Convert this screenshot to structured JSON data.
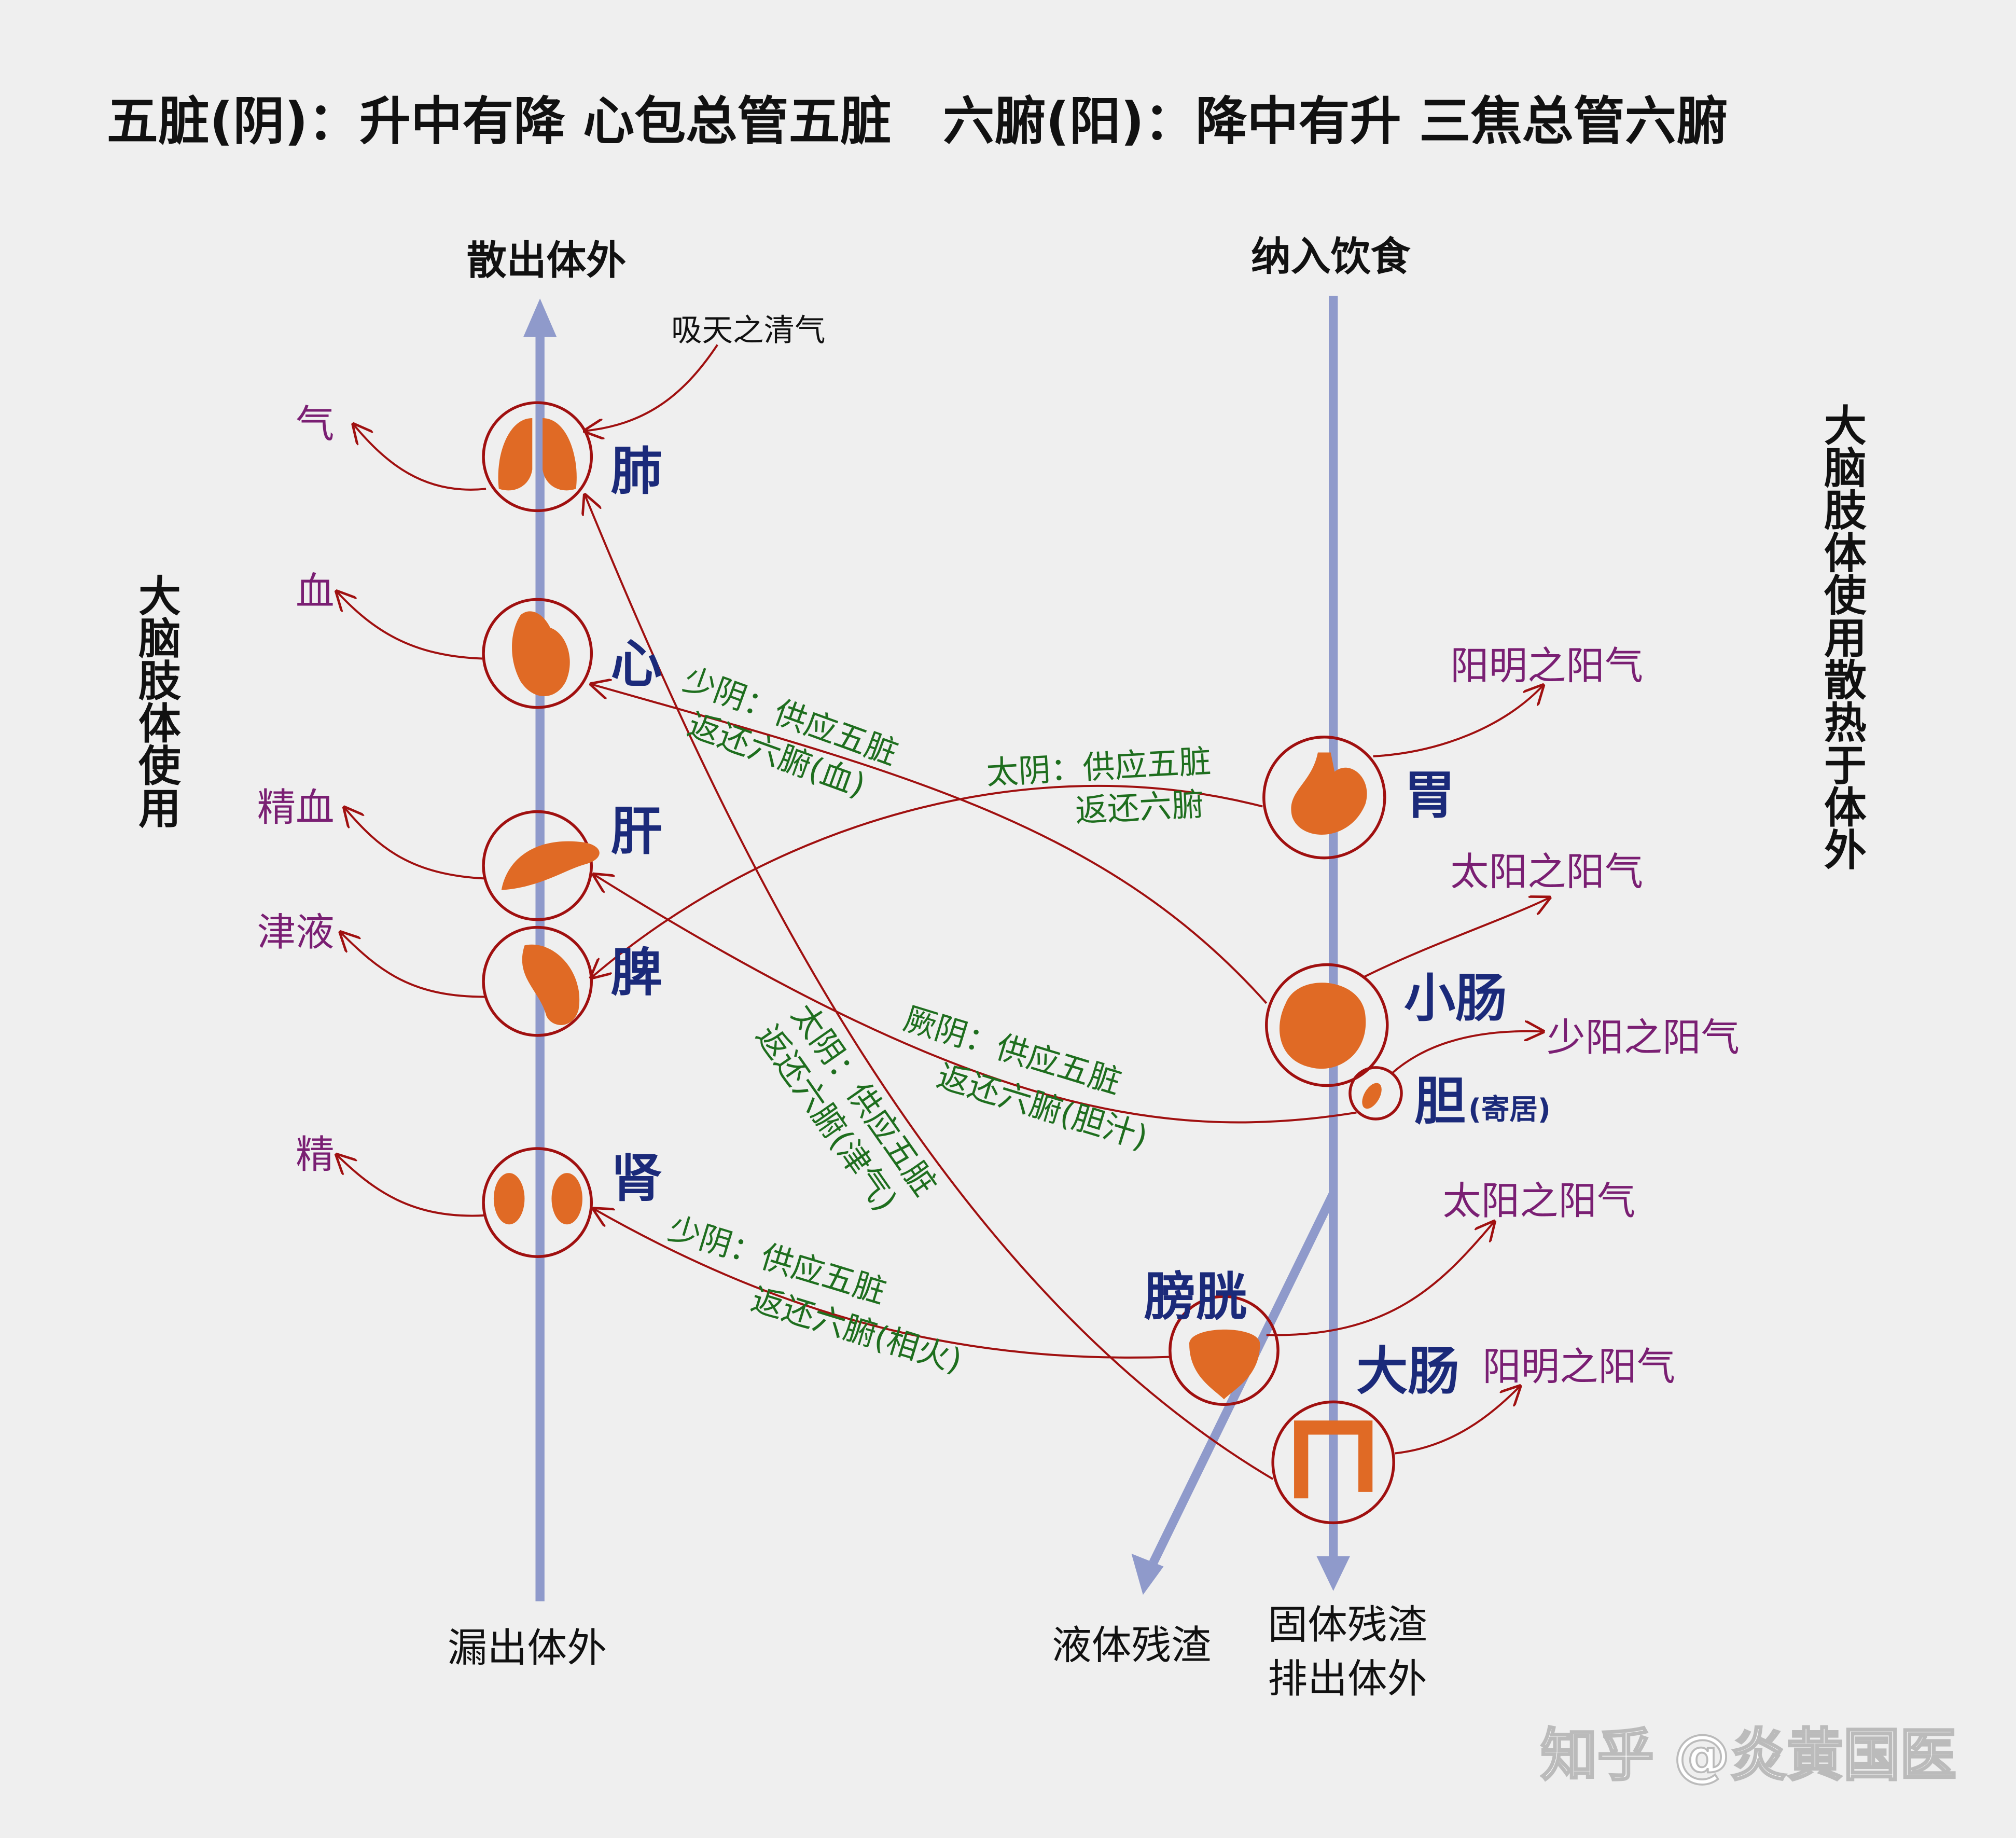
{
  "title": "五脏(阴)：升中有降 心包总管五脏　六腑(阳)：降中有升 三焦总管六腑",
  "left_axis": {
    "top": "散出体外",
    "bottom": "漏出体外",
    "side": "大脑肢体使用"
  },
  "right_axis": {
    "top": "纳入饮食",
    "bottom_liquid": "液体残渣",
    "bottom_solid_1": "固体残渣",
    "bottom_solid_2": "排出体外",
    "side": "大脑肢体使用散热于体外"
  },
  "inhale_label": "吸天之清气",
  "zang": [
    {
      "name": "肺",
      "output": "气"
    },
    {
      "name": "心",
      "output": "血"
    },
    {
      "name": "肝",
      "output": "精血"
    },
    {
      "name": "脾",
      "output": "津液"
    },
    {
      "name": "肾",
      "output": "精"
    }
  ],
  "fu": [
    {
      "name": "胃",
      "output": "阳明之阳气"
    },
    {
      "name": "小肠",
      "output": "太阳之阳气"
    },
    {
      "name": "胆",
      "note": "(寄居)",
      "output": "少阳之阳气"
    },
    {
      "name": "膀胱",
      "output": "太阳之阳气"
    },
    {
      "name": "大肠",
      "output": "阳明之阳气"
    }
  ],
  "channels": [
    {
      "line1": "少阴：供应五脏",
      "line2": "返还六腑(血)"
    },
    {
      "line1": "太阴：供应五脏",
      "line2": "返还六腑"
    },
    {
      "line1": "厥阴：供应五脏",
      "line2": "返还六腑(胆汁)"
    },
    {
      "line1": "太阴：供应五脏",
      "line2": "返还六腑(津气)"
    },
    {
      "line1": "少阴：供应五脏",
      "line2": "返还六腑(相火)"
    }
  ],
  "watermark": "知乎 @炎黄国医",
  "colors": {
    "background": "#efefef",
    "axis": "#8f9acb",
    "meridian": "#a01010",
    "organ": "#e06a25",
    "organ_label": "#1b2a7a",
    "qi_label": "#7a1f73",
    "channel_label": "#1e6e1e"
  }
}
